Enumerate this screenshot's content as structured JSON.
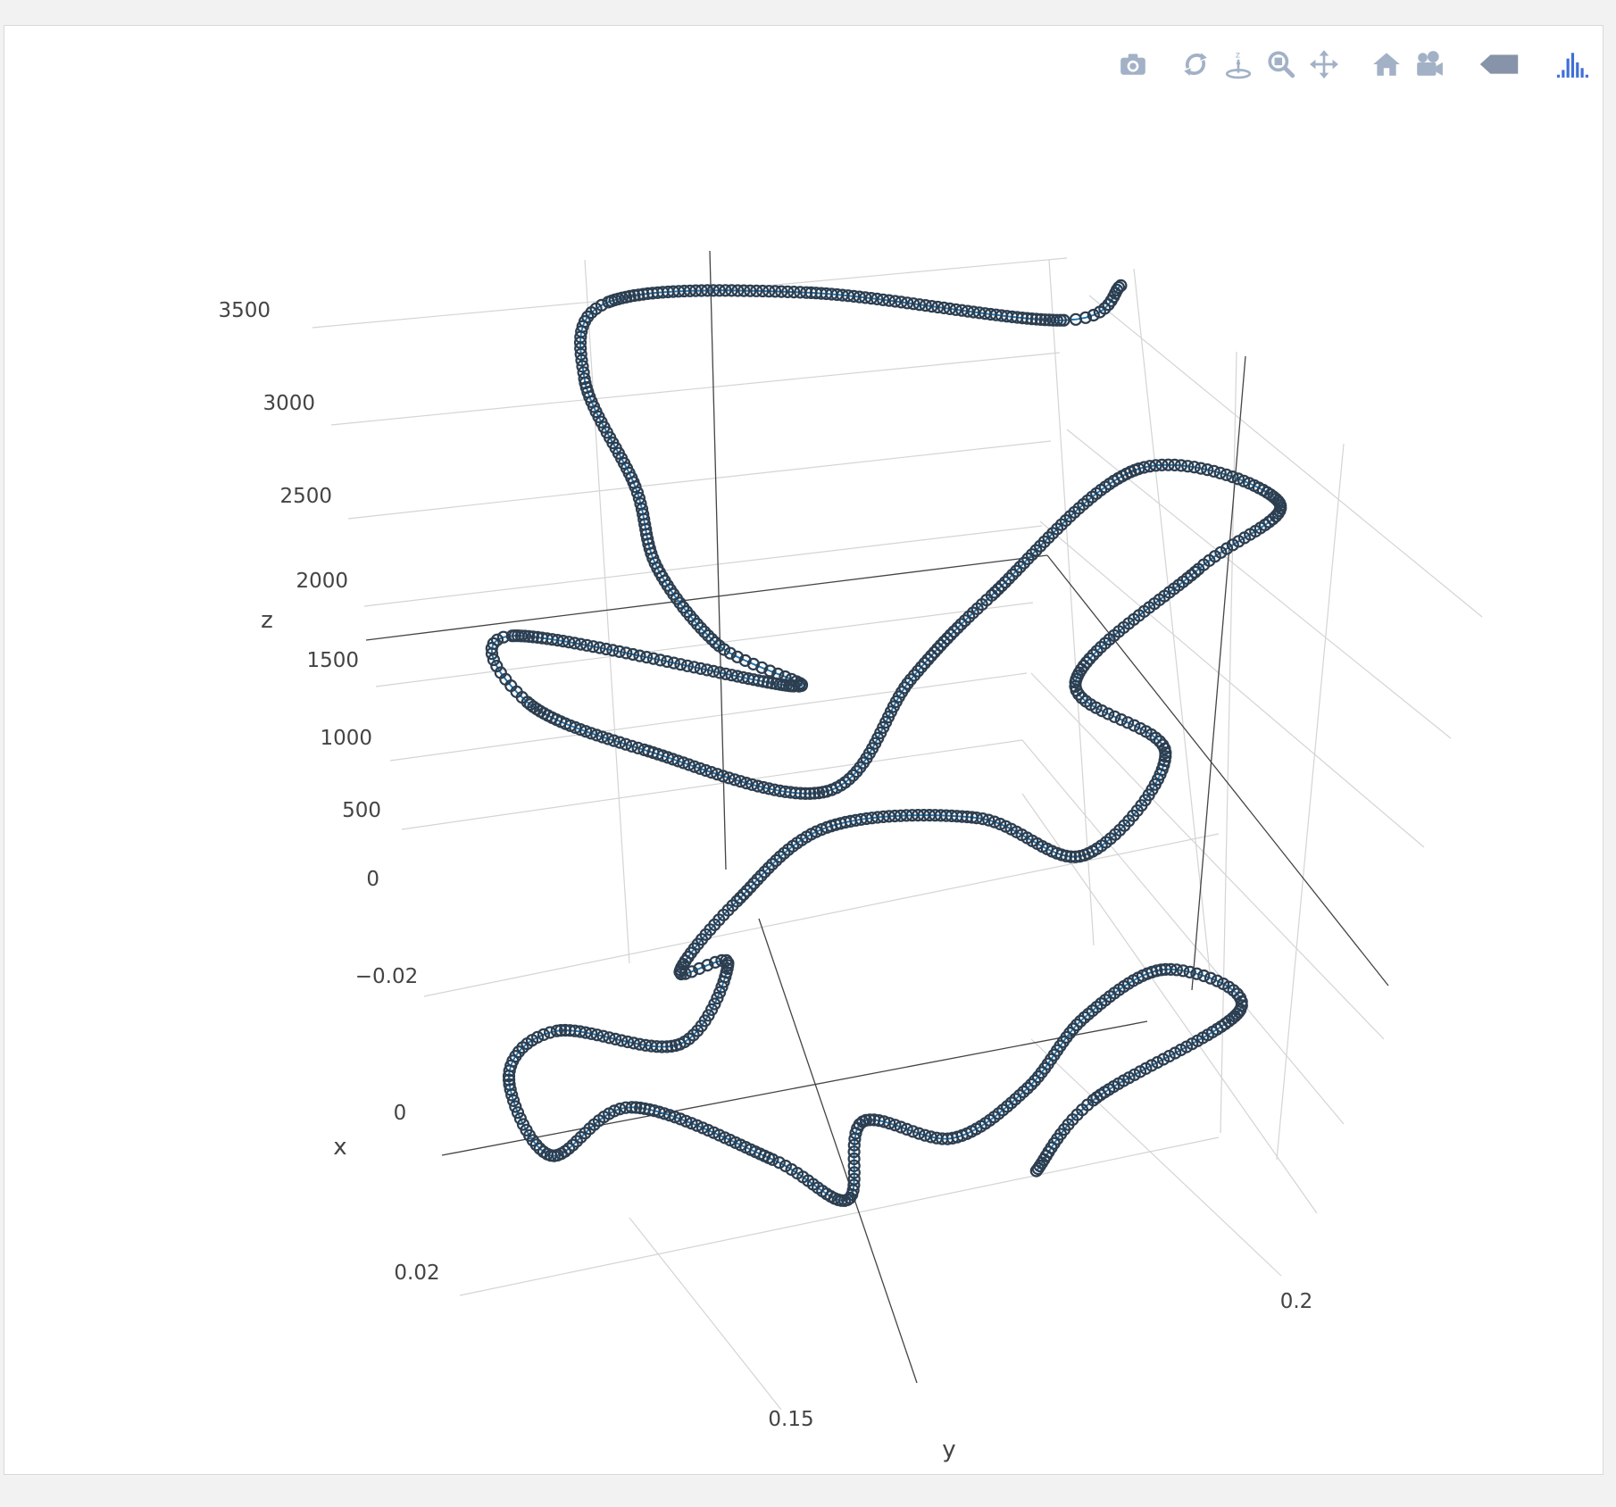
{
  "toolbar": {
    "buttons": [
      {
        "icon": "camera-icon",
        "title": "Download plot as a png"
      },
      {
        "icon": "orbit-rotate-icon",
        "title": "Orbital rotation"
      },
      {
        "icon": "turntable-icon",
        "title": "Turntable rotation"
      },
      {
        "icon": "zoom-icon",
        "title": "Zoom"
      },
      {
        "icon": "pan-icon",
        "title": "Pan"
      },
      {
        "icon": "home-icon",
        "title": "Reset camera to default"
      },
      {
        "icon": "camera-last-save-icon",
        "title": "Reset camera to last save"
      },
      {
        "icon": "hover-tag-icon",
        "title": "Toggle show closest data on hover"
      },
      {
        "icon": "plotly-logo-icon",
        "title": "Produced with Plotly"
      }
    ],
    "icon_color": "#a2b1c6",
    "logo_color": "#3f6fd6"
  },
  "chart_data": {
    "type": "scatter3d",
    "mode": "lines+markers",
    "marker_symbol": "circle-open",
    "marker_color": "#2c3e50",
    "line_color": "#1f77b4",
    "axes": {
      "x": {
        "title": "x",
        "ticks": [
          "−0.02",
          "0",
          "0.02"
        ],
        "range": [
          -0.03,
          0.03
        ]
      },
      "y": {
        "title": "y",
        "ticks": [
          "0.15",
          "0.2"
        ],
        "range": [
          0.11,
          0.24
        ]
      },
      "z": {
        "title": "z",
        "ticks": [
          "0",
          "500",
          "1000",
          "1500",
          "2000",
          "2500",
          "3000",
          "3500"
        ],
        "range": [
          0,
          3600
        ]
      }
    },
    "grid": true,
    "series_waypoints": [
      {
        "x": -0.02,
        "y": 0.215,
        "z": 3500
      },
      {
        "x": -0.015,
        "y": 0.205,
        "z": 3400
      },
      {
        "x": -0.03,
        "y": 0.17,
        "z": 3500
      },
      {
        "x": -0.03,
        "y": 0.14,
        "z": 3550
      },
      {
        "x": -0.025,
        "y": 0.135,
        "z": 3200
      },
      {
        "x": -0.015,
        "y": 0.14,
        "z": 2700
      },
      {
        "x": -0.01,
        "y": 0.142,
        "z": 2300
      },
      {
        "x": -0.005,
        "y": 0.15,
        "z": 1900
      },
      {
        "x": 0.0,
        "y": 0.16,
        "z": 1700
      },
      {
        "x": -0.01,
        "y": 0.12,
        "z": 2000
      },
      {
        "x": -0.02,
        "y": 0.125,
        "z": 1500
      },
      {
        "x": -0.01,
        "y": 0.14,
        "z": 1300
      },
      {
        "x": 0.0,
        "y": 0.165,
        "z": 1100
      },
      {
        "x": 0.01,
        "y": 0.175,
        "z": 1800
      },
      {
        "x": 0.0,
        "y": 0.19,
        "z": 2100
      },
      {
        "x": -0.01,
        "y": 0.215,
        "z": 2600
      },
      {
        "x": -0.005,
        "y": 0.235,
        "z": 2400
      },
      {
        "x": 0.005,
        "y": 0.22,
        "z": 2200
      },
      {
        "x": 0.01,
        "y": 0.2,
        "z": 1700
      },
      {
        "x": 0.005,
        "y": 0.215,
        "z": 1200
      },
      {
        "x": 0.015,
        "y": 0.2,
        "z": 800
      },
      {
        "x": 0.01,
        "y": 0.185,
        "z": 1000
      },
      {
        "x": 0.0,
        "y": 0.165,
        "z": 900
      },
      {
        "x": 0.005,
        "y": 0.15,
        "z": 600
      },
      {
        "x": 0.01,
        "y": 0.14,
        "z": 300
      },
      {
        "x": 0.0,
        "y": 0.15,
        "z": 200
      },
      {
        "x": 0.01,
        "y": 0.14,
        "z": -100
      },
      {
        "x": 0.015,
        "y": 0.12,
        "z": 100
      },
      {
        "x": 0.025,
        "y": 0.11,
        "z": 0
      },
      {
        "x": 0.03,
        "y": 0.115,
        "z": -400
      },
      {
        "x": 0.02,
        "y": 0.13,
        "z": -300
      },
      {
        "x": 0.025,
        "y": 0.15,
        "z": -600
      },
      {
        "x": 0.03,
        "y": 0.16,
        "z": -800
      },
      {
        "x": 0.02,
        "y": 0.165,
        "z": -500
      },
      {
        "x": 0.015,
        "y": 0.18,
        "z": -700
      },
      {
        "x": 0.02,
        "y": 0.19,
        "z": -400
      },
      {
        "x": 0.015,
        "y": 0.2,
        "z": -100
      },
      {
        "x": 0.005,
        "y": 0.215,
        "z": 0
      },
      {
        "x": 0.01,
        "y": 0.225,
        "z": -200
      },
      {
        "x": 0.02,
        "y": 0.2,
        "z": -500
      },
      {
        "x": 0.025,
        "y": 0.19,
        "z": -800
      }
    ]
  }
}
